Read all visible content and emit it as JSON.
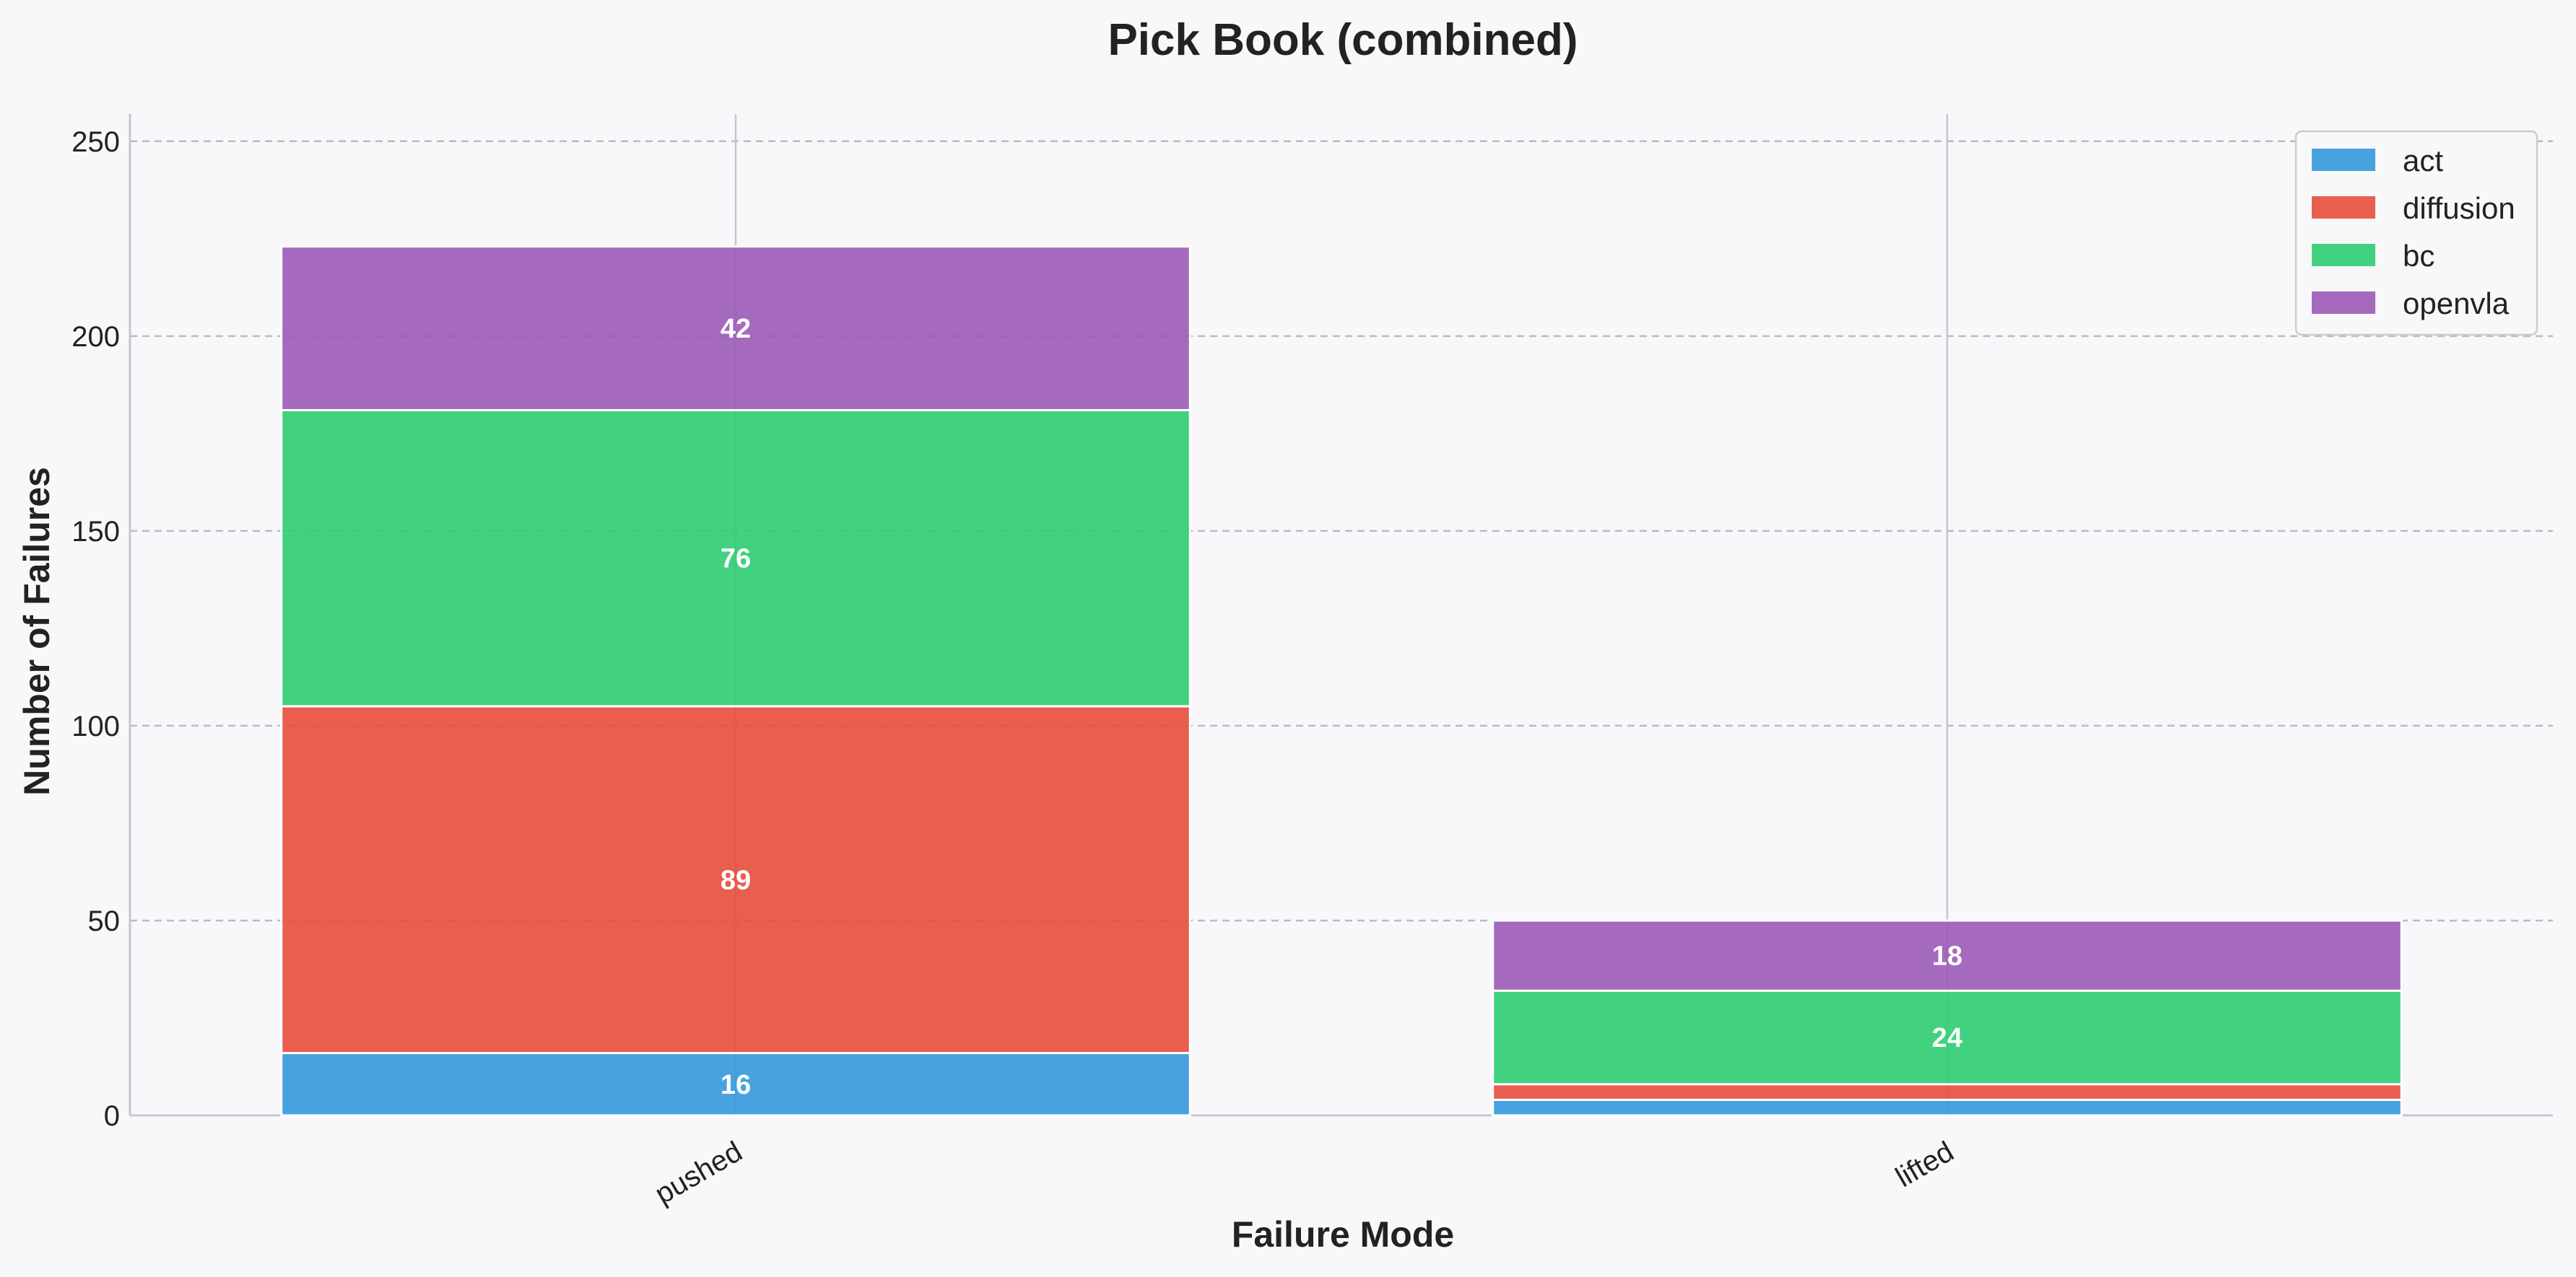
{
  "chart_data": {
    "type": "bar",
    "stacked": true,
    "title": "Pick Book (combined)",
    "xlabel": "Failure Mode",
    "ylabel": "Number of Failures",
    "categories": [
      "pushed",
      "lifted"
    ],
    "series": [
      {
        "name": "act",
        "color": "#3498db",
        "values": [
          16,
          4
        ]
      },
      {
        "name": "diffusion",
        "color": "#e74c3c",
        "values": [
          89,
          4
        ]
      },
      {
        "name": "bc",
        "color": "#2ecc71",
        "values": [
          76,
          24
        ]
      },
      {
        "name": "openvla",
        "color": "#9b59b6",
        "values": [
          42,
          18
        ]
      }
    ],
    "ylim": [
      0,
      257
    ],
    "yticks": [
      0,
      50,
      100,
      150,
      200,
      250
    ],
    "grid": true,
    "legend_position": "top-right",
    "value_labels": true
  }
}
